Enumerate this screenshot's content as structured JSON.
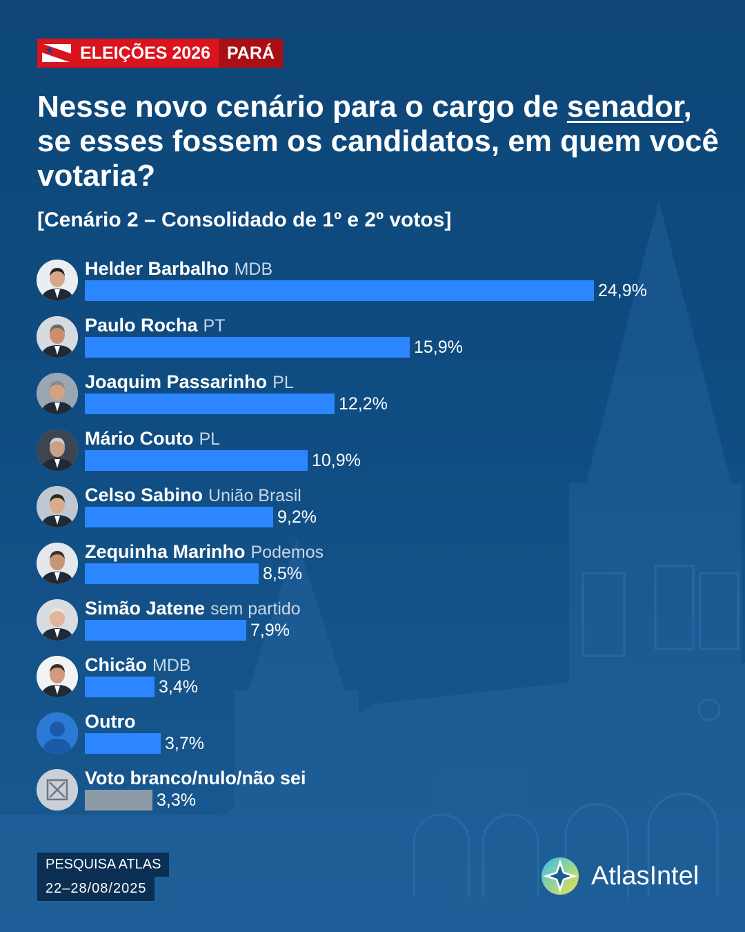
{
  "header": {
    "badge_left": "ELEIÇÕES 2026",
    "badge_right": "PARÁ"
  },
  "question": {
    "before": "Nesse novo cenário para o cargo de ",
    "underlined": "senador",
    "after": ", se esses fossem os candidatos, em quem você votaria?"
  },
  "subtitle": "[Cenário 2 – Consolidado de 1º e 2º votos]",
  "chart_data": {
    "type": "bar",
    "orientation": "horizontal",
    "unit": "%",
    "xlim": [
      0,
      24.9
    ],
    "categories": [
      "Helder Barbalho",
      "Paulo Rocha",
      "Joaquim Passarinho",
      "Mário Couto",
      "Celso Sabino",
      "Zequinha Marinho",
      "Simão Jatene",
      "Chicão",
      "Outro",
      "Voto branco/nulo/não sei"
    ],
    "parties": [
      "MDB",
      "PT",
      "PL",
      "PL",
      "União Brasil",
      "Podemos",
      "sem partido",
      "MDB",
      "",
      ""
    ],
    "values": [
      24.9,
      15.9,
      12.2,
      10.9,
      9.2,
      8.5,
      7.9,
      3.4,
      3.7,
      3.3
    ],
    "labels": [
      "24,9%",
      "15,9%",
      "12,2%",
      "10,9%",
      "9,2%",
      "8,5%",
      "7,9%",
      "3,4%",
      "3,7%",
      "3,3%"
    ],
    "bar_colors": [
      "#2b86ff",
      "#2b86ff",
      "#2b86ff",
      "#2b86ff",
      "#2b86ff",
      "#2b86ff",
      "#2b86ff",
      "#2b86ff",
      "#2b86ff",
      "#8d9aa8"
    ],
    "avatars": [
      "person-photo",
      "person-photo",
      "person-photo",
      "person-photo",
      "person-photo",
      "person-photo",
      "person-photo",
      "person-photo",
      "generic-person-icon",
      "crossed-box-icon"
    ]
  },
  "source": {
    "line1": "PESQUISA ATLAS",
    "line2": "22–28/08/2025"
  },
  "brand": {
    "name": "AtlasIntel"
  }
}
